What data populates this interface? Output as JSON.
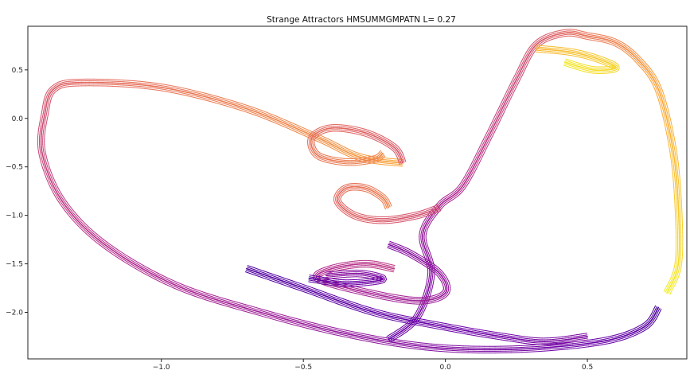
{
  "chart_data": {
    "type": "scatter",
    "title": "Strange Attractors     HMSUMMGMPATN    L= 0.27",
    "xlabel": "",
    "ylabel": "",
    "xlim": [
      -1.47,
      0.85
    ],
    "ylim": [
      -2.48,
      0.95
    ],
    "x_ticks": [
      -1.0,
      -0.5,
      0.0,
      0.5
    ],
    "x_tick_labels": [
      "−1.0",
      "−0.5",
      "0.0",
      "0.5"
    ],
    "y_ticks": [
      0.5,
      0.0,
      -0.5,
      -1.0,
      -1.5,
      -2.0
    ],
    "y_tick_labels": [
      "0.5",
      "0.0",
      "−0.5",
      "−1.0",
      "−1.5",
      "−2.0"
    ],
    "grid": false,
    "legend": "none",
    "colormap": [
      "#0d0887",
      "#6a00a8",
      "#b12a90",
      "#e16462",
      "#fca636",
      "#f0f921"
    ],
    "series": [
      {
        "color_range": [
          0.12,
          0.8
        ],
        "points": [
          [
            0.75,
            -1.95
          ],
          [
            0.7,
            -2.15
          ],
          [
            0.55,
            -2.3
          ],
          [
            0.25,
            -2.38
          ],
          [
            -0.05,
            -2.36
          ],
          [
            -0.35,
            -2.22
          ],
          [
            -0.65,
            -2.0
          ],
          [
            -0.95,
            -1.72
          ],
          [
            -1.2,
            -1.3
          ],
          [
            -1.35,
            -0.85
          ],
          [
            -1.42,
            -0.35
          ],
          [
            -1.41,
            0.05
          ],
          [
            -1.38,
            0.3
          ],
          [
            -1.28,
            0.37
          ],
          [
            -1.0,
            0.32
          ],
          [
            -0.7,
            0.1
          ],
          [
            -0.45,
            -0.2
          ],
          [
            -0.3,
            -0.4
          ],
          [
            -0.15,
            -0.46
          ]
        ]
      },
      {
        "color_range": [
          0.55,
          0.72
        ],
        "points": [
          [
            -0.15,
            -0.46
          ],
          [
            -0.18,
            -0.3
          ],
          [
            -0.28,
            -0.15
          ],
          [
            -0.4,
            -0.1
          ],
          [
            -0.47,
            -0.2
          ],
          [
            -0.45,
            -0.38
          ],
          [
            -0.35,
            -0.45
          ],
          [
            -0.25,
            -0.42
          ],
          [
            -0.22,
            -0.36
          ]
        ]
      },
      {
        "color_range": [
          0.18,
          0.98
        ],
        "points": [
          [
            -0.2,
            -2.28
          ],
          [
            -0.1,
            -2.05
          ],
          [
            -0.05,
            -1.6
          ],
          [
            -0.08,
            -1.2
          ],
          [
            -0.02,
            -0.9
          ],
          [
            0.06,
            -0.7
          ],
          [
            0.15,
            -0.2
          ],
          [
            0.25,
            0.4
          ],
          [
            0.32,
            0.76
          ],
          [
            0.42,
            0.88
          ],
          [
            0.5,
            0.85
          ],
          [
            0.6,
            0.78
          ],
          [
            0.68,
            0.6
          ],
          [
            0.75,
            0.3
          ],
          [
            0.8,
            -0.3
          ],
          [
            0.82,
            -0.9
          ],
          [
            0.82,
            -1.5
          ],
          [
            0.78,
            -1.8
          ]
        ]
      },
      {
        "color_range": [
          0.52,
          0.7
        ],
        "points": [
          [
            -0.02,
            -0.92
          ],
          [
            -0.1,
            -1.0
          ],
          [
            -0.22,
            -1.05
          ],
          [
            -0.32,
            -1.0
          ],
          [
            -0.38,
            -0.85
          ],
          [
            -0.35,
            -0.72
          ],
          [
            -0.28,
            -0.72
          ],
          [
            -0.22,
            -0.82
          ],
          [
            -0.2,
            -0.92
          ]
        ]
      },
      {
        "color_range": [
          0.26,
          0.46
        ],
        "points": [
          [
            -0.2,
            -1.3
          ],
          [
            -0.12,
            -1.4
          ],
          [
            -0.02,
            -1.6
          ],
          [
            0.0,
            -1.8
          ],
          [
            -0.1,
            -1.88
          ],
          [
            -0.3,
            -1.78
          ],
          [
            -0.45,
            -1.65
          ],
          [
            -0.4,
            -1.55
          ],
          [
            -0.28,
            -1.5
          ],
          [
            -0.18,
            -1.55
          ]
        ]
      },
      {
        "color_range": [
          0.16,
          0.3
        ],
        "points": [
          [
            -0.48,
            -1.65
          ],
          [
            -0.35,
            -1.7
          ],
          [
            -0.22,
            -1.66
          ],
          [
            -0.3,
            -1.6
          ],
          [
            -0.42,
            -1.62
          ]
        ]
      },
      {
        "color_range": [
          0.14,
          0.26
        ],
        "points": [
          [
            -0.7,
            -1.55
          ],
          [
            -0.5,
            -1.75
          ],
          [
            -0.25,
            -2.0
          ],
          [
            0.0,
            -2.15
          ],
          [
            0.2,
            -2.25
          ],
          [
            0.35,
            -2.3
          ],
          [
            0.5,
            -2.25
          ]
        ]
      },
      {
        "color_range": [
          0.84,
          0.96
        ],
        "points": [
          [
            0.32,
            0.72
          ],
          [
            0.45,
            0.68
          ],
          [
            0.55,
            0.6
          ],
          [
            0.6,
            0.52
          ],
          [
            0.52,
            0.5
          ],
          [
            0.42,
            0.58
          ]
        ]
      }
    ]
  }
}
